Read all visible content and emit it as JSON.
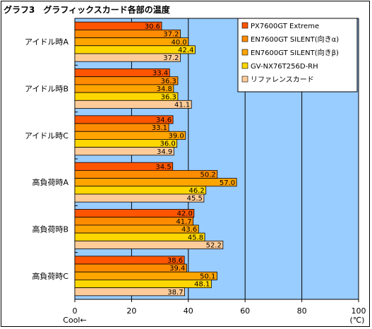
{
  "chart_data": {
    "type": "bar",
    "orientation": "horizontal",
    "title": "グラフ3　グラフィックスカード各部の温度",
    "categories": [
      "アイドル時A",
      "アイドル時B",
      "アイドル時C",
      "高負荷時A",
      "高負荷時B",
      "高負荷時C"
    ],
    "series": [
      {
        "name": "PX7600GT Extreme",
        "color": "#FF5500",
        "values": [
          30.6,
          33.4,
          34.6,
          34.5,
          42.0,
          38.6
        ]
      },
      {
        "name": "EN7600GT SILENT(向きα)",
        "color": "#FF8C00",
        "values": [
          37.2,
          36.3,
          33.1,
          50.2,
          41.7,
          39.4
        ]
      },
      {
        "name": "EN7600GT SILENT(向きβ)",
        "color": "#FFA500",
        "values": [
          40.0,
          34.8,
          39.0,
          57.0,
          43.6,
          50.1
        ]
      },
      {
        "name": "GV-NX76T256D-RH",
        "color": "#FFD700",
        "values": [
          42.4,
          36.3,
          36.0,
          46.2,
          45.8,
          48.1
        ]
      },
      {
        "name": "リファレンスカード",
        "color": "#FFCC99",
        "values": [
          37.2,
          41.1,
          34.9,
          45.5,
          52.2,
          38.7
        ]
      }
    ],
    "xlim": [
      0,
      100
    ],
    "xticks": [
      0,
      20,
      40,
      60,
      80,
      100
    ],
    "xlabel_left": "Cool←",
    "xlabel_right": "(℃)",
    "grid": "vertical",
    "legend": "top-right",
    "plot_background": "#99CCFF"
  }
}
